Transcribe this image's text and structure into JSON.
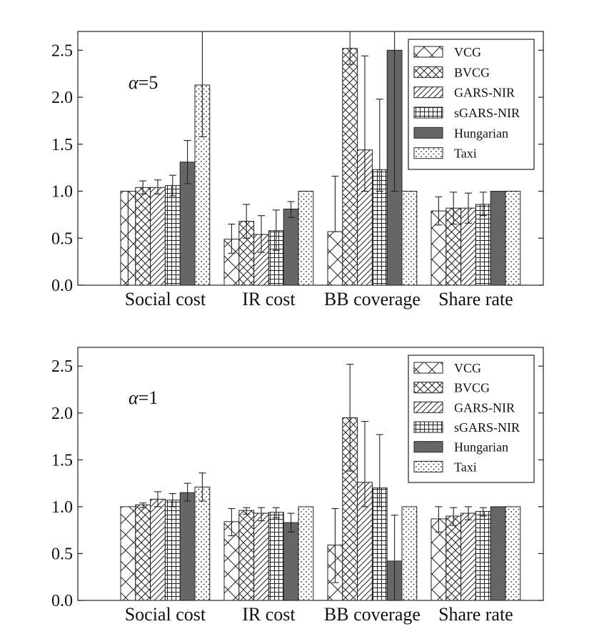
{
  "chart_data": [
    {
      "type": "bar",
      "annotation_prefix": "α",
      "annotation_value": "=5",
      "categories": [
        "Social cost",
        "IR cost",
        "BB coverage",
        "Share rate"
      ],
      "ylim": [
        0,
        2.7
      ],
      "yticks": [
        "0.0",
        "0.5",
        "1.0",
        "1.5",
        "2.0",
        "2.5"
      ],
      "series": [
        {
          "name": "VCG",
          "pattern": "vcg",
          "values": [
            1.0,
            0.49,
            0.57,
            0.79
          ],
          "err_low": [
            0.0,
            0.34,
            0.57,
            0.64
          ],
          "err_high": [
            1.0,
            0.65,
            1.16,
            0.94
          ]
        },
        {
          "name": "BVCG",
          "pattern": "bvcg",
          "values": [
            1.04,
            0.68,
            2.52,
            0.82
          ],
          "err_low": [
            0.97,
            0.5,
            2.35,
            0.65
          ],
          "err_high": [
            1.11,
            0.86,
            2.7,
            0.99
          ]
        },
        {
          "name": "GARS-NIR",
          "pattern": "gars",
          "values": [
            1.04,
            0.54,
            1.44,
            0.82
          ],
          "err_low": [
            0.97,
            0.35,
            1.0,
            0.66
          ],
          "err_high": [
            1.12,
            0.74,
            2.44,
            0.98
          ]
        },
        {
          "name": "sGARS-NIR",
          "pattern": "sgars",
          "values": [
            1.06,
            0.58,
            1.23,
            0.86
          ],
          "err_low": [
            0.95,
            0.37,
            1.0,
            0.74
          ],
          "err_high": [
            1.17,
            0.8,
            1.98,
            0.99
          ]
        },
        {
          "name": "Hungarian",
          "pattern": "hung",
          "values": [
            1.31,
            0.81,
            2.5,
            1.0
          ],
          "err_low": [
            1.08,
            0.72,
            1.0,
            1.0
          ],
          "err_high": [
            1.54,
            0.89,
            2.7,
            1.0
          ]
        },
        {
          "name": "Taxi",
          "pattern": "taxi",
          "values": [
            2.13,
            1.0,
            1.0,
            1.0
          ],
          "err_low": [
            1.58,
            1.0,
            1.0,
            1.0
          ],
          "err_high": [
            2.7,
            1.0,
            1.0,
            1.0
          ]
        }
      ]
    },
    {
      "type": "bar",
      "annotation_prefix": "α",
      "annotation_value": "=1",
      "categories": [
        "Social cost",
        "IR cost",
        "BB coverage",
        "Share rate"
      ],
      "ylim": [
        0,
        2.7
      ],
      "yticks": [
        "0.0",
        "0.5",
        "1.0",
        "1.5",
        "2.0",
        "2.5"
      ],
      "series": [
        {
          "name": "VCG",
          "pattern": "vcg",
          "values": [
            1.0,
            0.84,
            0.59,
            0.87
          ],
          "err_low": [
            1.0,
            0.69,
            0.19,
            0.73
          ],
          "err_high": [
            1.0,
            0.98,
            0.98,
            1.0
          ]
        },
        {
          "name": "BVCG",
          "pattern": "bvcg",
          "values": [
            1.02,
            0.96,
            1.95,
            0.9
          ],
          "err_low": [
            0.99,
            0.92,
            1.38,
            0.8
          ],
          "err_high": [
            1.04,
            0.99,
            2.52,
            0.99
          ]
        },
        {
          "name": "GARS-NIR",
          "pattern": "gars",
          "values": [
            1.08,
            0.93,
            1.26,
            0.93
          ],
          "err_low": [
            1.0,
            0.85,
            1.0,
            0.86
          ],
          "err_high": [
            1.16,
            0.99,
            1.91,
            1.0
          ]
        },
        {
          "name": "sGARS-NIR",
          "pattern": "sgars",
          "values": [
            1.07,
            0.94,
            1.2,
            0.95
          ],
          "err_low": [
            1.0,
            0.88,
            1.0,
            0.9
          ],
          "err_high": [
            1.14,
            0.99,
            1.77,
            0.99
          ]
        },
        {
          "name": "Hungarian",
          "pattern": "hung",
          "values": [
            1.15,
            0.83,
            0.42,
            1.0
          ],
          "err_low": [
            1.06,
            0.73,
            0.0,
            1.0
          ],
          "err_high": [
            1.25,
            0.93,
            0.91,
            1.0
          ]
        },
        {
          "name": "Taxi",
          "pattern": "taxi",
          "values": [
            1.21,
            1.0,
            1.0,
            1.0
          ],
          "err_low": [
            1.06,
            1.0,
            1.0,
            1.0
          ],
          "err_high": [
            1.36,
            1.0,
            1.0,
            1.0
          ]
        }
      ]
    }
  ]
}
